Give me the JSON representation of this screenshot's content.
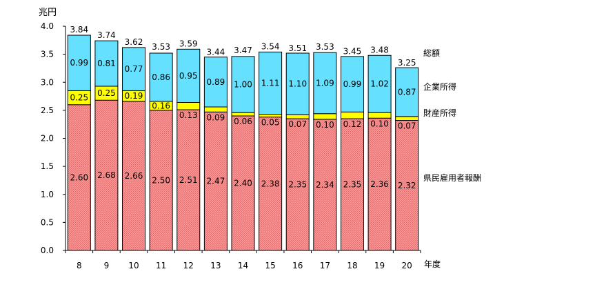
{
  "chart_data": {
    "type": "bar",
    "stacked": true,
    "y_unit": "兆円",
    "x_unit": "年度",
    "ylim": [
      0,
      4.0
    ],
    "y_ticks": [
      "0.0",
      "0.5",
      "1.0",
      "1.5",
      "2.0",
      "2.5",
      "3.0",
      "3.5",
      "4.0"
    ],
    "categories": [
      "8",
      "9",
      "10",
      "11",
      "12",
      "13",
      "14",
      "15",
      "16",
      "17",
      "18",
      "19",
      "20"
    ],
    "series": [
      {
        "name": "県民雇用者報酬",
        "color": "#FF9999",
        "values": [
          2.6,
          2.68,
          2.66,
          2.5,
          2.51,
          2.47,
          2.4,
          2.38,
          2.35,
          2.34,
          2.35,
          2.36,
          2.32
        ],
        "labels": [
          "2.60",
          "2.68",
          "2.66",
          "2.50",
          "2.51",
          "2.47",
          "2.40",
          "2.38",
          "2.35",
          "2.34",
          "2.35",
          "2.36",
          "2.32"
        ]
      },
      {
        "name": "財産所得",
        "color": "#FFFF00",
        "values": [
          0.25,
          0.25,
          0.19,
          0.16,
          0.13,
          0.09,
          0.06,
          0.05,
          0.07,
          0.1,
          0.12,
          0.1,
          0.07
        ],
        "labels": [
          "0.25",
          "0.25",
          "0.19",
          "0.16",
          "0.13",
          "0.09",
          "0.06",
          "0.05",
          "0.07",
          "0.10",
          "0.12",
          "0.10",
          "0.07"
        ]
      },
      {
        "name": "企業所得",
        "color": "#66E0FF",
        "values": [
          0.99,
          0.81,
          0.77,
          0.86,
          0.95,
          0.89,
          1.0,
          1.11,
          1.1,
          1.09,
          0.99,
          1.02,
          0.87
        ],
        "labels": [
          "0.99",
          "0.81",
          "0.77",
          "0.86",
          "0.95",
          "0.89",
          "1.00",
          "1.11",
          "1.10",
          "1.09",
          "0.99",
          "1.02",
          "0.87"
        ]
      }
    ],
    "totals_label": "総額",
    "totals": [
      3.84,
      3.74,
      3.62,
      3.53,
      3.59,
      3.44,
      3.47,
      3.54,
      3.51,
      3.53,
      3.45,
      3.48,
      3.25
    ],
    "total_labels": [
      "3.84",
      "3.74",
      "3.62",
      "3.53",
      "3.59",
      "3.44",
      "3.47",
      "3.54",
      "3.51",
      "3.53",
      "3.45",
      "3.48",
      "3.25"
    ]
  }
}
